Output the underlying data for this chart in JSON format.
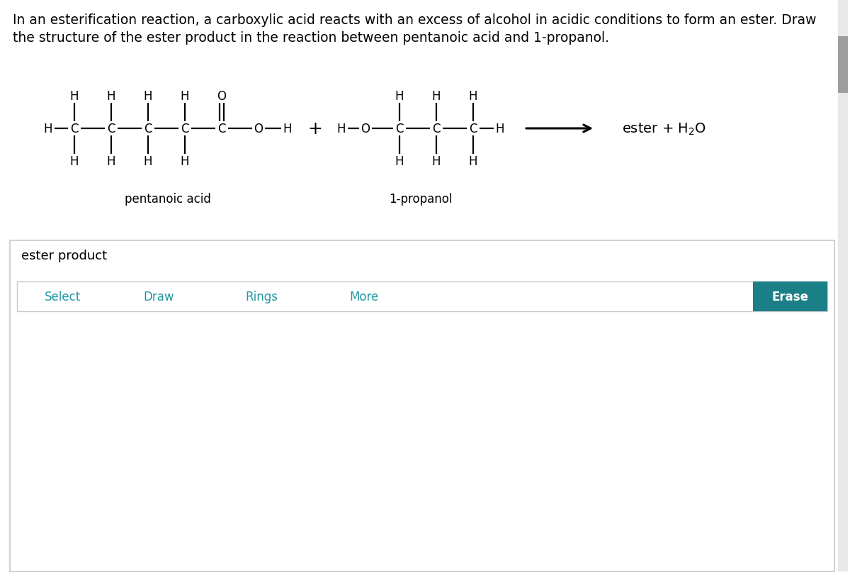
{
  "background_color": "#ffffff",
  "question_text_line1": "In an esterification reaction, a carboxylic acid reacts with an excess of alcohol in acidic conditions to form an ester. Draw",
  "question_text_line2": "the structure of the ester product in the reaction between pentanoic acid and 1-propanol.",
  "label_pentanoic": "pentanoic acid",
  "label_propanol": "1-propanol",
  "label_product": "ester product",
  "toolbar_items": [
    "Select",
    "Draw",
    "Rings",
    "More"
  ],
  "toolbar_color": "#2098a0",
  "erase_bg_color": "#1a7f87",
  "erase_text_color": "#ffffff",
  "border_color": "#c8c8c8",
  "scrollbar_color": "#9e9e9e",
  "text_color": "#000000",
  "font_size_question": 13.5,
  "font_size_molecule": 12,
  "font_size_label": 12
}
